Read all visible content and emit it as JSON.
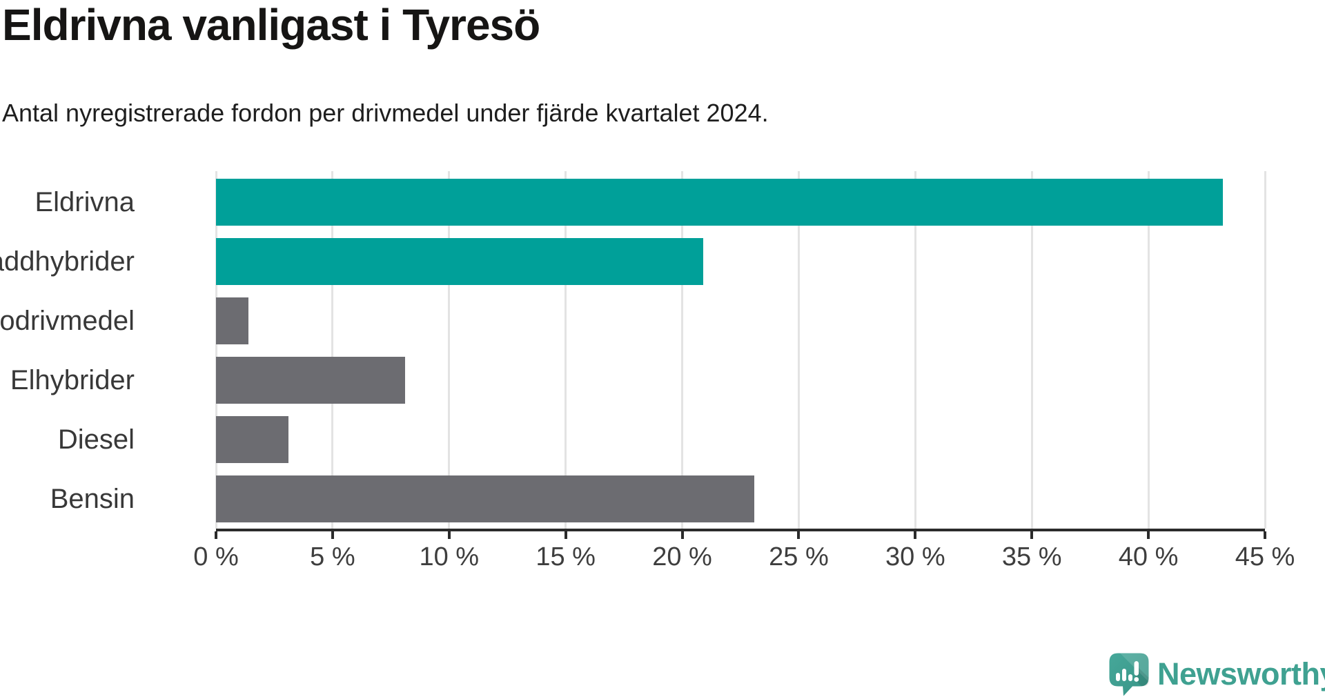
{
  "title": "Eldrivna vanligast i Tyresö",
  "subtitle": "Antal nyregistrerade fordon per drivmedel under fjärde kvartalet 2024.",
  "branding": {
    "logo_text": "Newsworthy",
    "icon": "newsworthy-speech-bubble-bar-chart-icon"
  },
  "colors": {
    "highlight_teal": "#00a099",
    "muted_gray": "#6c6c71",
    "gridline": "#e3e3e3",
    "axis": "#2b2b2b",
    "tick_text": "#3e3e3e",
    "category_text": "#383838",
    "logo_teal": "#3fa191"
  },
  "chart_data": {
    "type": "bar",
    "orientation": "horizontal",
    "title": "Eldrivna vanligast i Tyresö",
    "subtitle": "Antal nyregistrerade fordon per drivmedel under fjärde kvartalet 2024.",
    "categories": [
      "Eldrivna",
      "Laddhybrider",
      "Biodrivmedel",
      "Elhybrider",
      "Diesel",
      "Bensin"
    ],
    "values": [
      43.2,
      20.9,
      1.4,
      8.1,
      3.1,
      23.1
    ],
    "unit": "%",
    "bar_colors": [
      "#00a099",
      "#00a099",
      "#6c6c71",
      "#6c6c71",
      "#6c6c71",
      "#6c6c71"
    ],
    "xlim": [
      0,
      45
    ],
    "x_tick_values": [
      0,
      5,
      10,
      15,
      20,
      25,
      30,
      35,
      40,
      45
    ],
    "x_tick_labels": [
      "0 %",
      "5 %",
      "10 %",
      "15 %",
      "20 %",
      "25 %",
      "30 %",
      "35 %",
      "40 %",
      "45 %"
    ],
    "grid": true,
    "legend": false
  }
}
